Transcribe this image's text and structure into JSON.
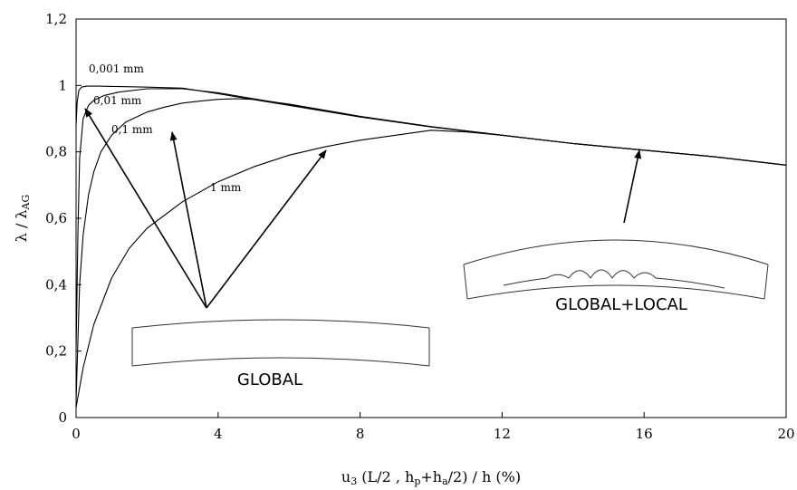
{
  "chart_data": {
    "type": "line",
    "title": "",
    "xlabel": "u3 (L/2 , hp+ha/2) / h (%)",
    "ylabel": "λ / λAG",
    "xlim": [
      0,
      20
    ],
    "ylim": [
      0,
      1.2
    ],
    "x_ticks": [
      "0",
      "4",
      "8",
      "12",
      "16",
      "20"
    ],
    "y_ticks": [
      "0",
      "0,2",
      "0,4",
      "0,6",
      "0,8",
      "1",
      "1,2"
    ],
    "grid": false,
    "legend": "none",
    "series": [
      {
        "name": "0,001 mm",
        "x": [
          0,
          0.03,
          0.08,
          0.15,
          0.3,
          0.6,
          1.0,
          2.0,
          3.0,
          4.0,
          6.0,
          8.0,
          10.0,
          12.0,
          14.0,
          16.0,
          18.0,
          20.0
        ],
        "y": [
          0.88,
          0.95,
          0.985,
          0.995,
          0.998,
          0.998,
          0.997,
          0.995,
          0.992,
          0.975,
          0.94,
          0.905,
          0.875,
          0.85,
          0.825,
          0.805,
          0.785,
          0.76
        ]
      },
      {
        "name": "0,01 mm",
        "x": [
          0,
          0.05,
          0.1,
          0.2,
          0.35,
          0.5,
          0.8,
          1.2,
          2.0,
          3.0,
          4.0,
          6.0,
          8.0,
          10.0,
          12.0,
          14.0,
          16.0,
          18.0,
          20.0
        ],
        "y": [
          0.2,
          0.55,
          0.78,
          0.9,
          0.94,
          0.955,
          0.97,
          0.98,
          0.99,
          0.99,
          0.978,
          0.942,
          0.906,
          0.876,
          0.85,
          0.825,
          0.805,
          0.785,
          0.76
        ]
      },
      {
        "name": "0,1 mm",
        "x": [
          0,
          0.1,
          0.2,
          0.35,
          0.5,
          0.7,
          1.0,
          1.4,
          2.0,
          2.5,
          3.0,
          3.5,
          4.0,
          4.5,
          5.0,
          6.0,
          8.0,
          10.0,
          12.0,
          14.0,
          16.0,
          18.0,
          20.0
        ],
        "y": [
          0.05,
          0.4,
          0.55,
          0.67,
          0.74,
          0.8,
          0.85,
          0.89,
          0.92,
          0.935,
          0.947,
          0.953,
          0.958,
          0.96,
          0.958,
          0.944,
          0.907,
          0.876,
          0.85,
          0.825,
          0.805,
          0.785,
          0.76
        ]
      },
      {
        "name": "1 mm",
        "x": [
          0,
          0.2,
          0.5,
          1.0,
          1.5,
          2.0,
          3.0,
          4.0,
          5.0,
          6.0,
          7.0,
          8.0,
          9.0,
          10.0,
          11.0,
          12.0,
          14.0,
          16.0,
          18.0,
          20.0
        ],
        "y": [
          0.03,
          0.15,
          0.28,
          0.42,
          0.51,
          0.57,
          0.65,
          0.71,
          0.755,
          0.79,
          0.815,
          0.835,
          0.85,
          0.865,
          0.86,
          0.85,
          0.825,
          0.805,
          0.785,
          0.76
        ]
      }
    ],
    "annotations": [
      {
        "text": "GLOBAL",
        "image": "beam-global-deformation"
      },
      {
        "text": "GLOBAL+LOCAL",
        "image": "beam-global-local-deformation"
      }
    ]
  }
}
